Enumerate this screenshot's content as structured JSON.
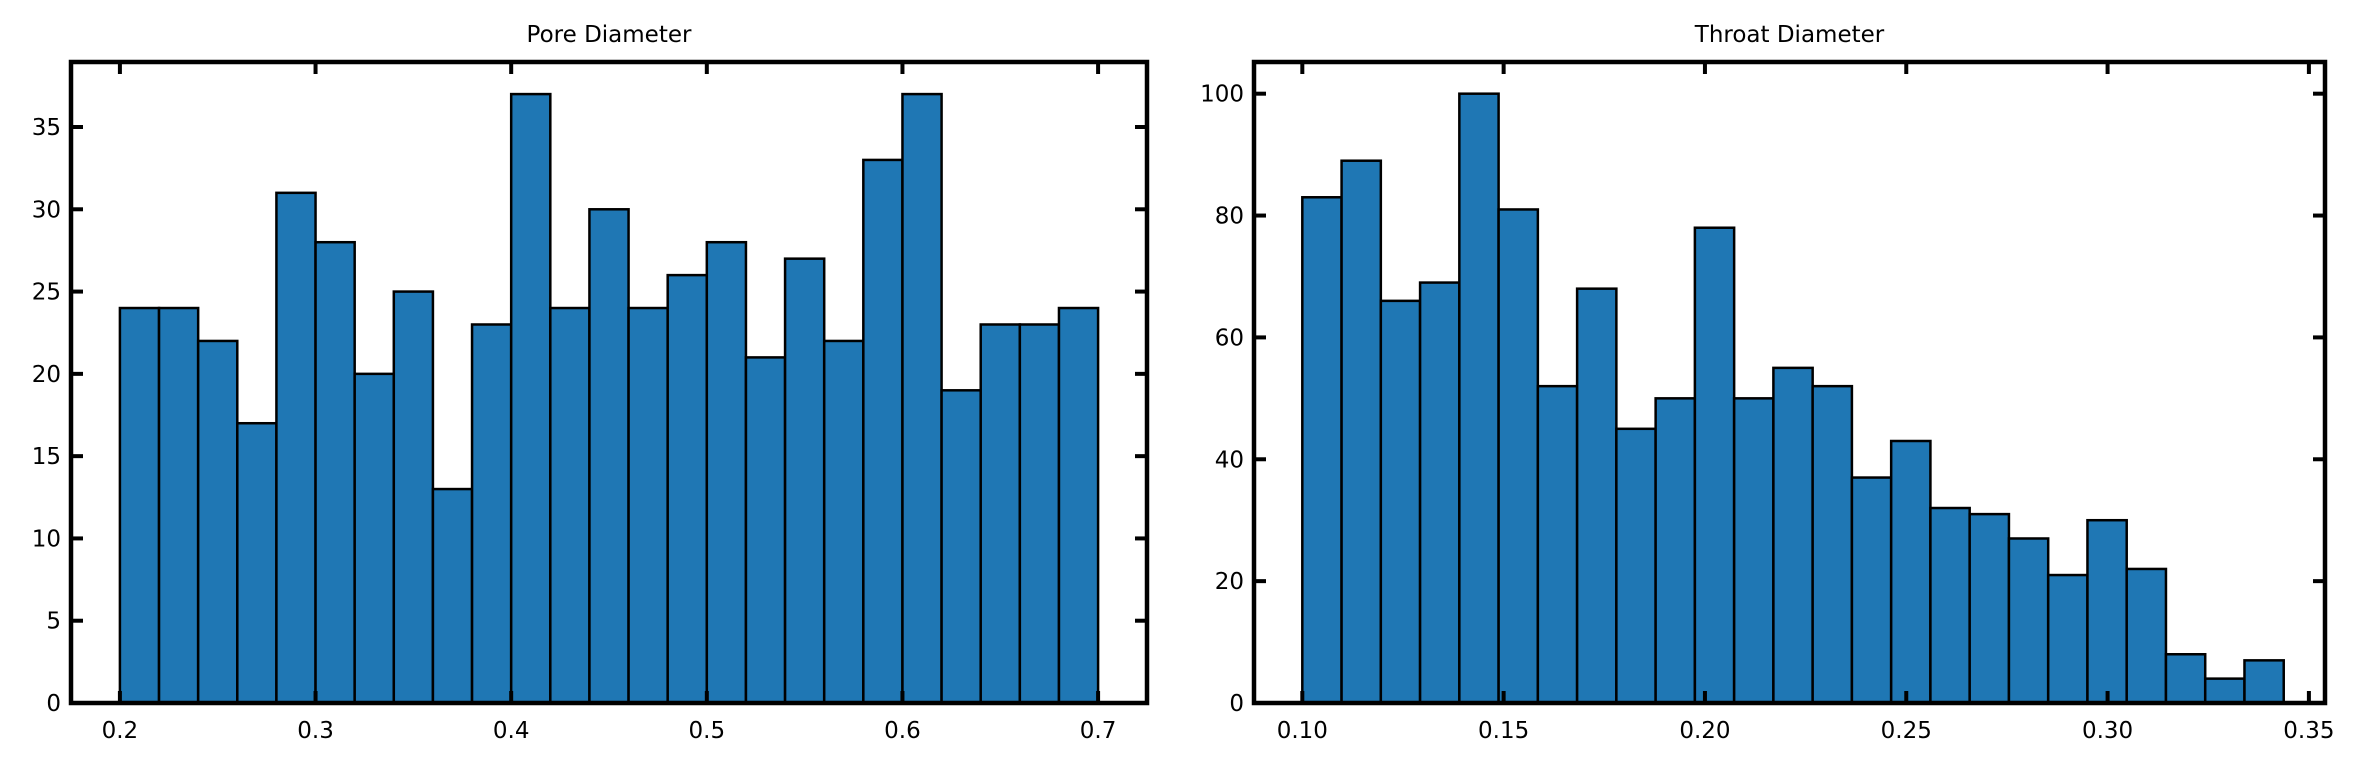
{
  "chart_data": [
    {
      "type": "histogram",
      "title": "Pore Diameter",
      "color": "#1f77b4",
      "edgecolor": "#000000",
      "bins": [
        0.2,
        0.22,
        0.24,
        0.26,
        0.28,
        0.3,
        0.32,
        0.34,
        0.36,
        0.38,
        0.4,
        0.42,
        0.44,
        0.46,
        0.48,
        0.5,
        0.52,
        0.54,
        0.56,
        0.58,
        0.6,
        0.62,
        0.64,
        0.66,
        0.68,
        0.7
      ],
      "values": [
        24,
        24,
        22,
        17,
        31,
        28,
        20,
        25,
        13,
        23,
        37,
        24,
        30,
        24,
        26,
        28,
        21,
        27,
        22,
        33,
        37,
        19,
        23,
        23,
        24
      ],
      "xlim": [
        0.175,
        0.725
      ],
      "xticks": [
        0.2,
        0.3,
        0.4,
        0.5,
        0.6,
        0.7
      ],
      "ylim": [
        0,
        38.95
      ],
      "yticks": [
        0,
        5,
        10,
        15,
        20,
        25,
        30,
        35
      ]
    },
    {
      "type": "histogram",
      "title": "Throat Diameter",
      "color": "#1f77b4",
      "edgecolor": "#000000",
      "bins": [
        0.1,
        0.10975,
        0.1195,
        0.12925,
        0.139,
        0.14875,
        0.1585,
        0.16825,
        0.178,
        0.18775,
        0.1975,
        0.20725,
        0.217,
        0.22675,
        0.2365,
        0.24625,
        0.256,
        0.26575,
        0.2755,
        0.28525,
        0.295,
        0.30475,
        0.3145,
        0.32425,
        0.334,
        0.34375
      ],
      "values": [
        83,
        89,
        66,
        69,
        100,
        81,
        52,
        68,
        45,
        50,
        78,
        50,
        55,
        52,
        37,
        43,
        32,
        31,
        27,
        21,
        30,
        22,
        8,
        4,
        7
      ],
      "xlim": [
        0.088,
        0.354
      ],
      "xticks": [
        {
          "value": 0.1,
          "label": "0.10"
        },
        {
          "value": 0.15,
          "label": "0.15"
        },
        {
          "value": 0.2,
          "label": "0.20"
        },
        {
          "value": 0.25,
          "label": "0.25"
        },
        {
          "value": 0.3,
          "label": "0.30"
        },
        {
          "value": 0.35,
          "label": "0.35"
        }
      ],
      "ylim": [
        0,
        105.2
      ],
      "yticks": [
        0,
        20,
        40,
        60,
        80,
        100
      ]
    }
  ]
}
